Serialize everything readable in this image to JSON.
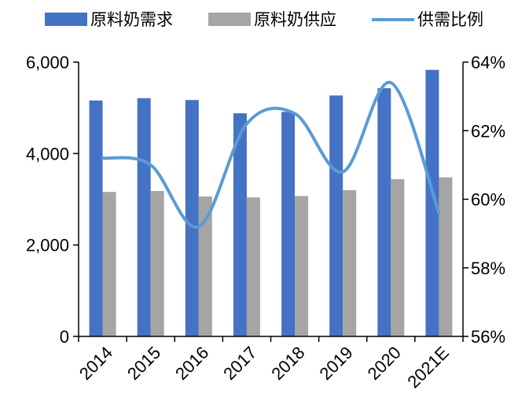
{
  "chart_data": {
    "type": "bar",
    "categories": [
      "2014",
      "2015",
      "2016",
      "2017",
      "2018",
      "2019",
      "2020",
      "2021E"
    ],
    "series": [
      {
        "name": "原料奶需求",
        "type": "bar",
        "axis": "left",
        "color": "#4472C4",
        "values": [
          5160,
          5210,
          5170,
          4880,
          4910,
          5270,
          5430,
          5830
        ]
      },
      {
        "name": "原料奶供应",
        "type": "bar",
        "axis": "left",
        "color": "#A5A5A5",
        "values": [
          3160,
          3180,
          3060,
          3040,
          3070,
          3200,
          3440,
          3480
        ]
      },
      {
        "name": "供需比例",
        "type": "line",
        "axis": "right",
        "color": "#5B9BD5",
        "values": [
          61.2,
          61.0,
          59.2,
          62.2,
          62.5,
          60.8,
          63.4,
          59.6
        ]
      }
    ],
    "y_left": {
      "min": 0,
      "max": 6000,
      "ticks": [
        "0",
        "2,000",
        "4,000",
        "6,000"
      ],
      "tick_values": [
        0,
        2000,
        4000,
        6000
      ]
    },
    "y_right": {
      "min": 56,
      "max": 64,
      "ticks": [
        "56%",
        "58%",
        "60%",
        "62%",
        "64%"
      ],
      "tick_values": [
        56,
        58,
        60,
        62,
        64
      ]
    },
    "title": "",
    "xlabel": "",
    "ylabel": "",
    "grid": false,
    "legend_position": "top"
  }
}
